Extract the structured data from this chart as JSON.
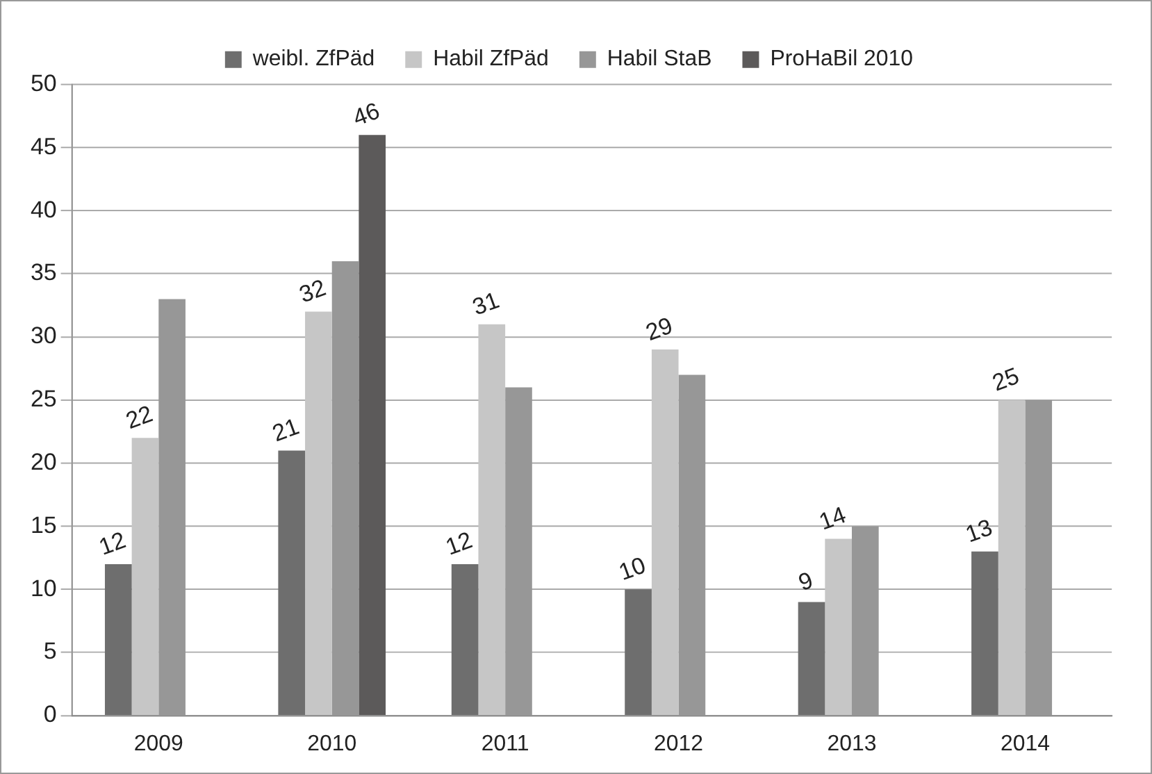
{
  "chart_data": {
    "type": "bar",
    "categories": [
      "2009",
      "2010",
      "2011",
      "2012",
      "2013",
      "2014"
    ],
    "series": [
      {
        "name": "weibl. ZfPäd",
        "color": "#6e6e6e",
        "values": [
          12,
          21,
          12,
          10,
          9,
          13
        ],
        "value_labels": [
          "12",
          "21",
          "12",
          "10",
          "9",
          "13"
        ]
      },
      {
        "name": "Habil ZfPäd",
        "color": "#c6c6c6",
        "values": [
          22,
          32,
          31,
          29,
          14,
          25
        ],
        "value_labels": [
          "22",
          "32",
          "31",
          "29",
          "14",
          "25"
        ]
      },
      {
        "name": "Habil StaB",
        "color": "#979797",
        "values": [
          33,
          36,
          26,
          27,
          15,
          25
        ]
      },
      {
        "name": "ProHaBil 2010",
        "color": "#5c5a5a",
        "values": [
          null,
          46,
          null,
          null,
          null,
          null
        ],
        "value_labels": [
          null,
          "46",
          null,
          null,
          null,
          null
        ]
      }
    ],
    "ylim": [
      0,
      50
    ],
    "yticks": [
      0,
      5,
      10,
      15,
      20,
      25,
      30,
      35,
      40,
      45,
      50
    ],
    "grid": "y",
    "legend": "top"
  }
}
